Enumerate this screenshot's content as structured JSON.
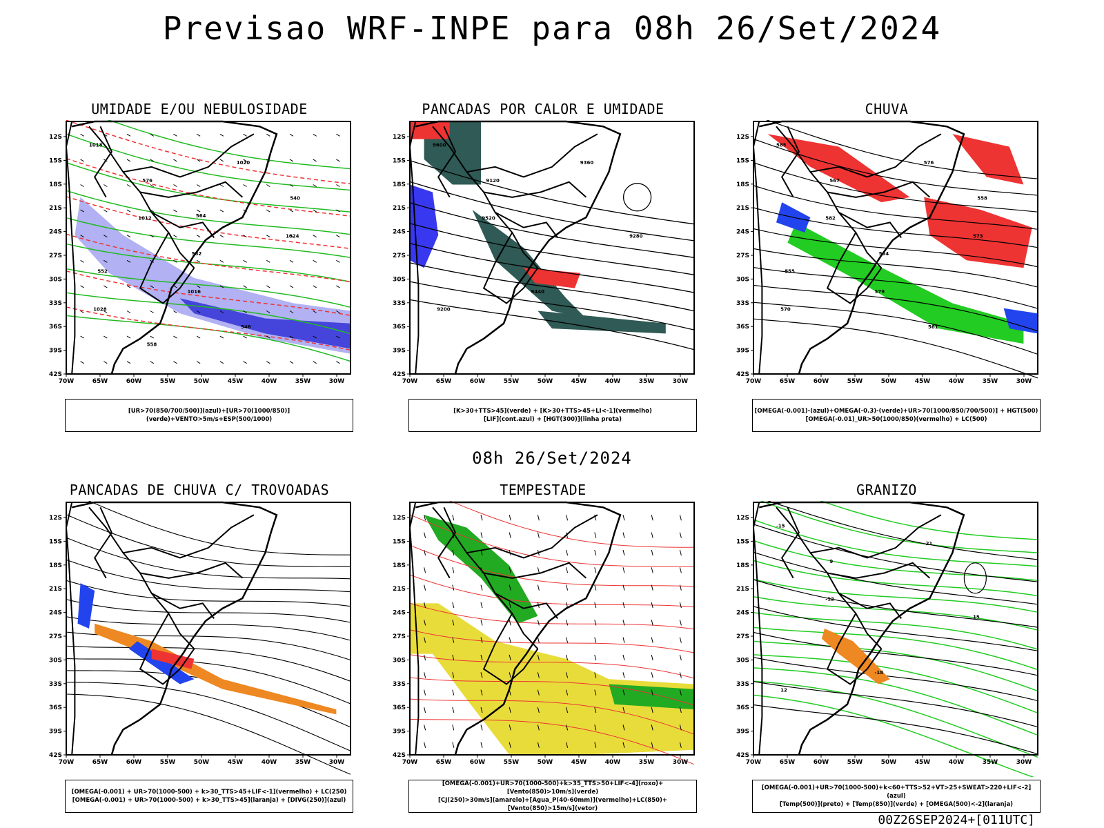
{
  "title": "Previsao WRF-INPE  para 08h 26/Set/2024",
  "subtitle": "08h 26/Set/2024",
  "footer": "00Z26SEP2024+[011UTC]",
  "axes": {
    "y_ticks": [
      "12S",
      "15S",
      "18S",
      "21S",
      "24S",
      "27S",
      "30S",
      "33S",
      "36S",
      "39S",
      "42S"
    ],
    "x_ticks": [
      "70W",
      "65W",
      "60W",
      "55W",
      "50W",
      "45W",
      "40W",
      "35W",
      "30W"
    ]
  },
  "panels": [
    {
      "title": "UMIDADE E/OU NEBULOSIDADE",
      "legend": [
        "[UR>70(850/700/500)](azul)+[UR>70(1000/850)](verde)+VENTO>5m/s+ESP(500/1000)"
      ],
      "colors": {
        "fill1": "#9090ee",
        "fill2": "#3a3ad8",
        "line1": "#22bb22",
        "line2": "#ee3333",
        "line3": "#000000"
      },
      "labels": [
        "1018",
        "1012",
        "1016",
        "1020",
        "1024",
        "1028",
        "576",
        "582",
        "546",
        "540",
        "552",
        "558",
        "564"
      ]
    },
    {
      "title": "PANCADAS POR CALOR E UMIDADE",
      "legend": [
        "[K>30+TTS>45](verde) + [K>30+TTS>45+LI<-1](vermelho)",
        "[LIF](cont.azul) + [HGT(300)](linha preta)"
      ],
      "colors": {
        "fill1": "#2f5a55",
        "fill2": "#ee3333",
        "line1": "#2222ee",
        "line2": "#000000"
      },
      "labels": [
        "9600",
        "9520",
        "9440",
        "9360",
        "9280",
        "9200",
        "9120"
      ]
    },
    {
      "title": "CHUVA",
      "legend": [
        "[OMEGA(-0.001)-(azul)+OMEGA(-0.3)-(verde)+UR>70(1000/850/700/500)] + HGT(500)",
        "[OMEGA(-0.01)_UR>50(1000/850)(vermelho) + LC(500)"
      ],
      "colors": {
        "fill1": "#ee3333",
        "fill2": "#22cc22",
        "fill3": "#2244ee",
        "line1": "#000000"
      },
      "labels": [
        "585",
        "582",
        "579",
        "576",
        "573",
        "570",
        "567",
        "564",
        "561",
        "558",
        "555"
      ]
    },
    {
      "title": "PANCADAS DE CHUVA C/ TROVOADAS",
      "legend": [
        "[OMEGA(-0.001) + UR>70(1000-500) + k>30_TTS>45+LIF<-1](vermelho) + LC(250)",
        "[OMEGA(-0.001) + UR>70(1000-500) + k>30_TTS>45](laranja) + [DIVG(250)](azul)"
      ],
      "colors": {
        "fill1": "#ee8822",
        "fill2": "#2244ee",
        "fill3": "#ee3333",
        "line1": "#000000"
      },
      "labels": []
    },
    {
      "title": "TEMPESTADE",
      "legend": [
        "[OMEGA(-0.001)+UR>70(1000-500)+k>35_TTS>50+LIF<-4](roxo)+[Vento(850)>10m/s](verde)",
        "[CJ(250)>30m/s](amarelo)+[Agua_P(40-60mm)](vermelho)+LC(850)+[Vento(850)>15m/s](vetor)"
      ],
      "colors": {
        "fill1": "#e8dc3a",
        "fill2": "#22aa22",
        "line1": "#ee3333",
        "line2": "#000000"
      },
      "labels": []
    },
    {
      "title": "GRANIZO",
      "legend": [
        "[OMEGA(-0.001)+UR>70(1000-500)+k<60+TTS>52+VT>25+SWEAT>220+LIF<-2](azul)",
        "[Temp(500)](preto) + [Temp(850)](verde) + [OMEGA(500)<-2](laranja)"
      ],
      "colors": {
        "fill1": "#ee8822",
        "line1": "#22cc22",
        "line2": "#000000"
      },
      "labels": [
        "-15",
        "-12",
        "-18",
        "-21",
        "15",
        "12",
        "9"
      ]
    }
  ]
}
